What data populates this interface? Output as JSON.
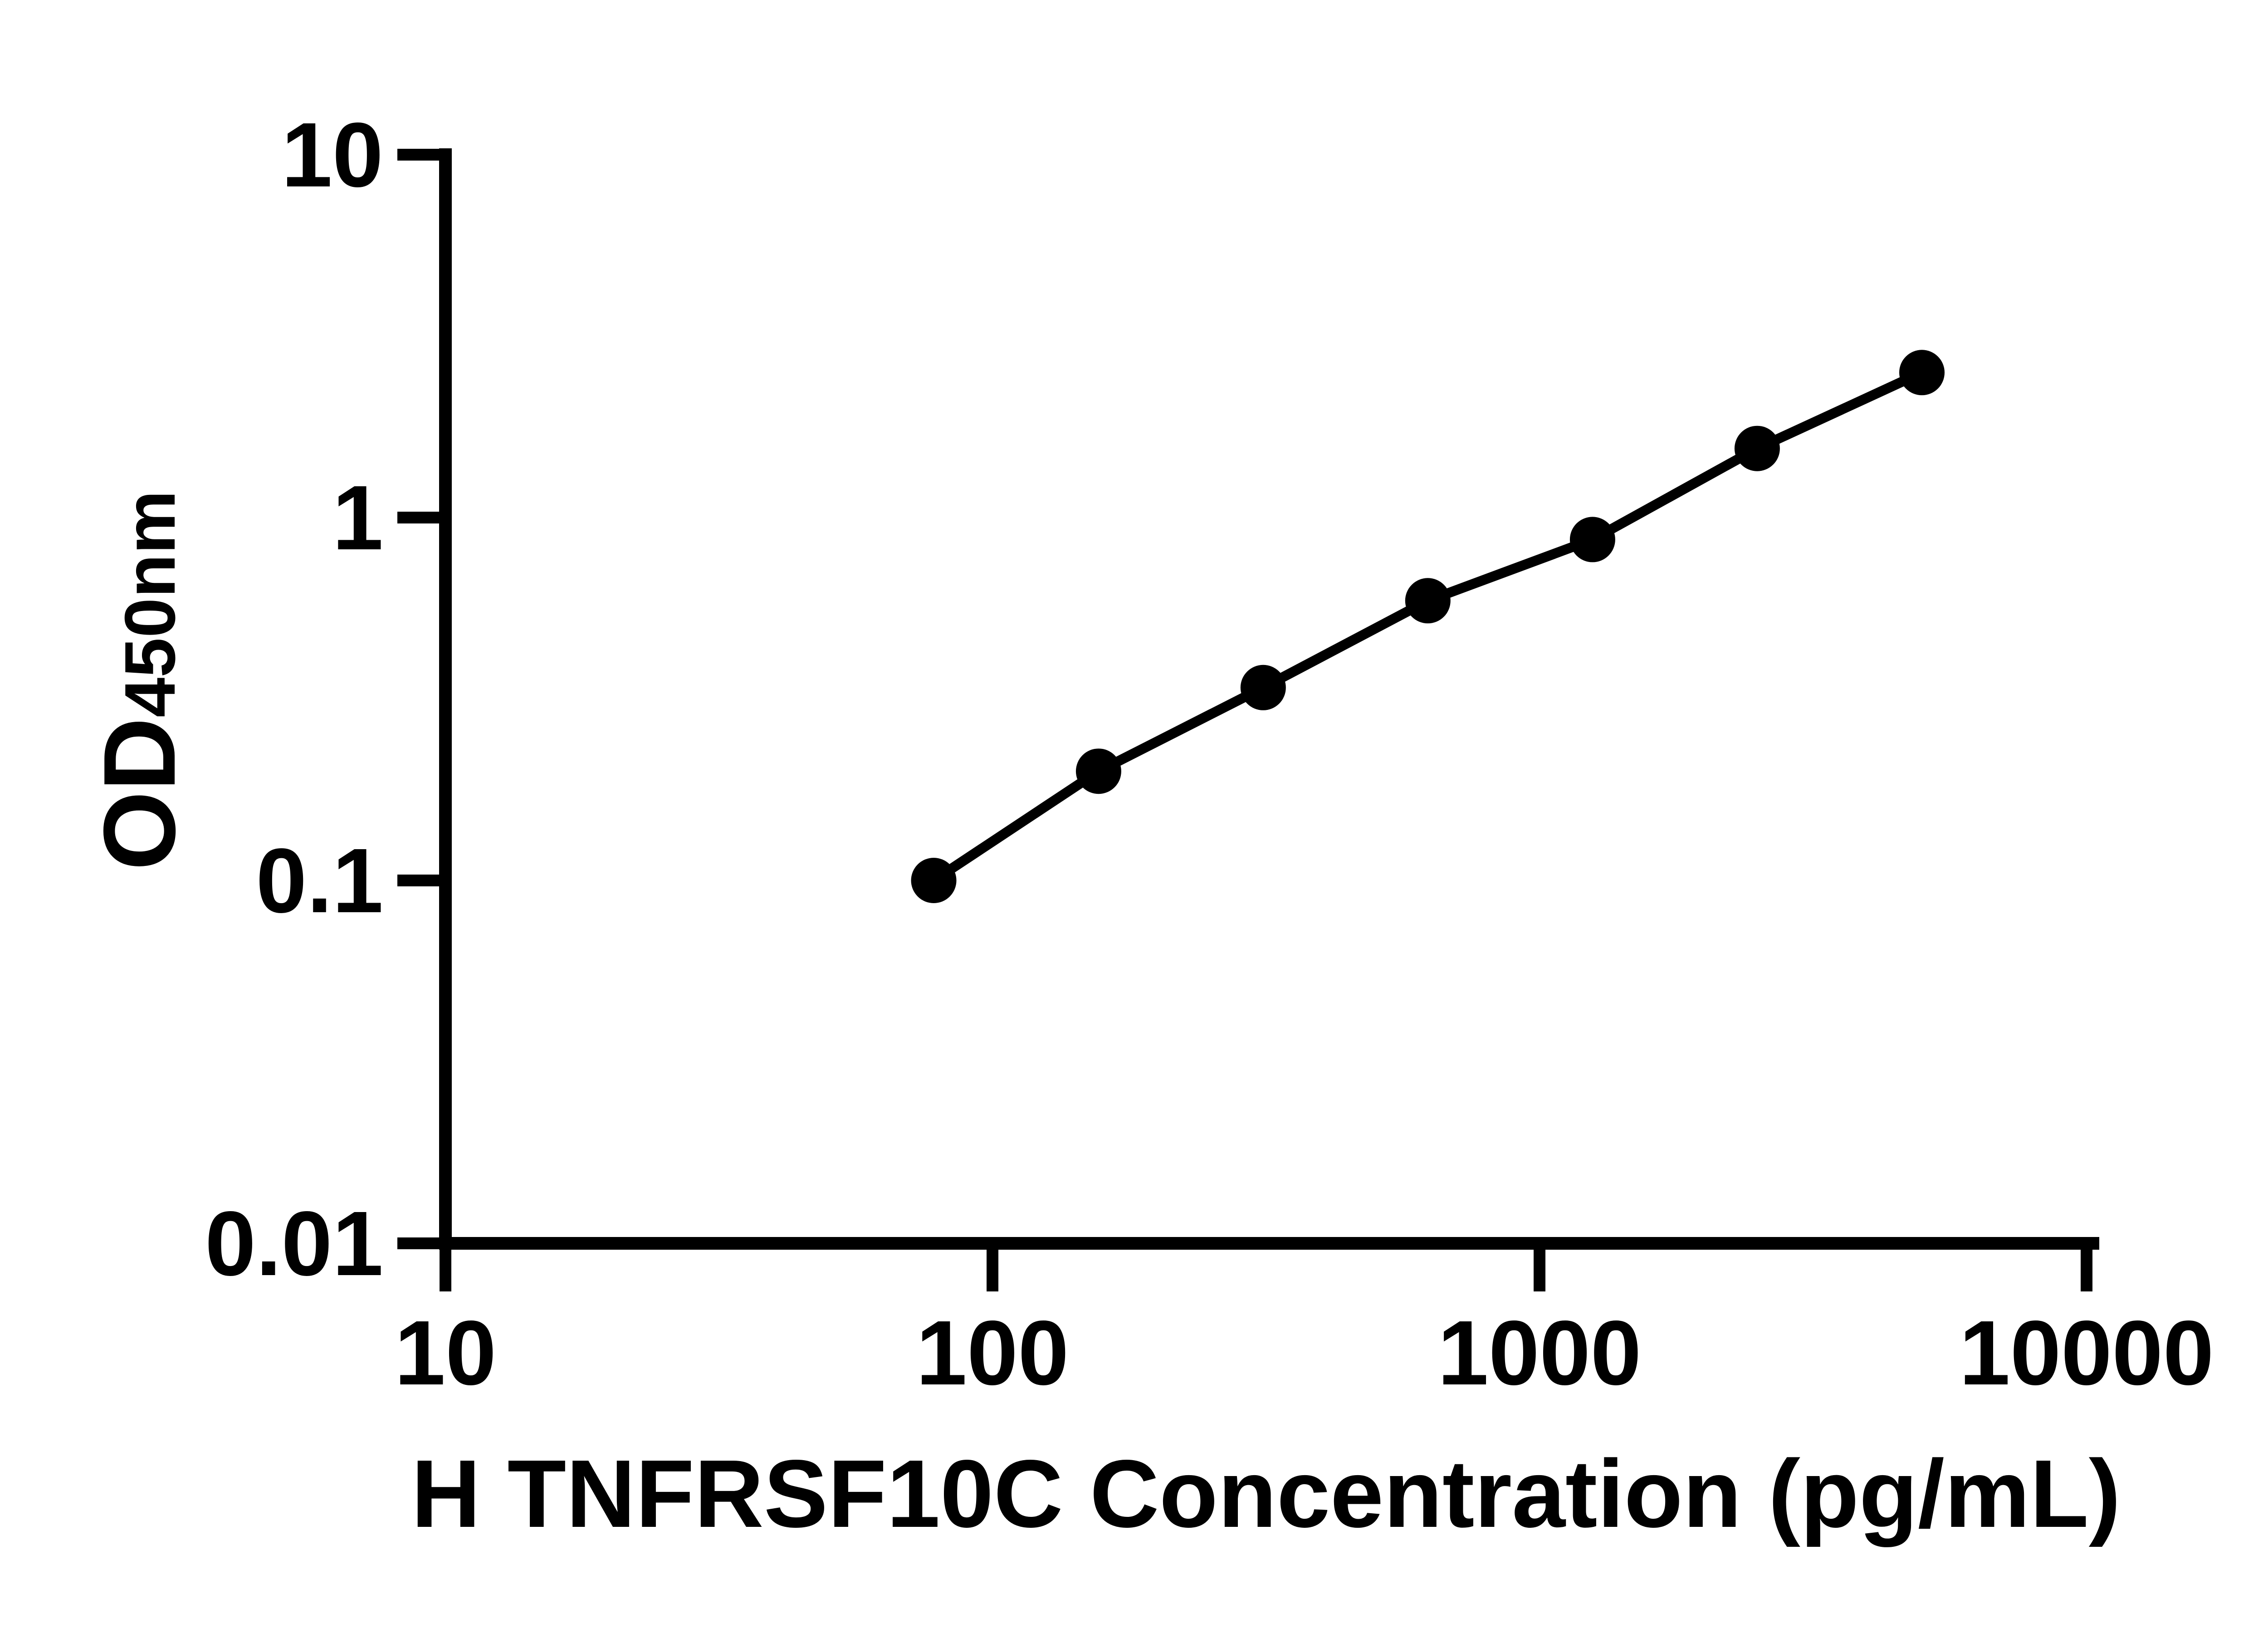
{
  "figure": {
    "background_color": "#ffffff",
    "ink_color": "#000000"
  },
  "chart_data": {
    "type": "scatter",
    "subtype": "line-with-markers",
    "title": "",
    "xlabel": "H TNFRSF10C Concentration (pg/mL)",
    "ylabel_main": "OD",
    "ylabel_sub": "450nm",
    "x_scale": "log10",
    "y_scale": "log10",
    "xlim": [
      10,
      10000
    ],
    "ylim": [
      0.01,
      10
    ],
    "grid": false,
    "legend_position": "none",
    "marker_shape": "circle",
    "marker_color": "#000000",
    "line_color": "#000000",
    "x": [
      78.1,
      156.3,
      312.5,
      625,
      1250,
      2500,
      5000
    ],
    "od": [
      0.1,
      0.2,
      0.34,
      0.59,
      0.87,
      1.55,
      2.51
    ],
    "x_ticks": [
      {
        "value": 10,
        "label": "10"
      },
      {
        "value": 100,
        "label": "100"
      },
      {
        "value": 1000,
        "label": "1000"
      },
      {
        "value": 10000,
        "label": "10000"
      }
    ],
    "y_ticks": [
      {
        "value": 10,
        "label": "10"
      },
      {
        "value": 1,
        "label": "1"
      },
      {
        "value": 0.1,
        "label": "0.1"
      },
      {
        "value": 0.01,
        "label": "0.01"
      }
    ]
  }
}
